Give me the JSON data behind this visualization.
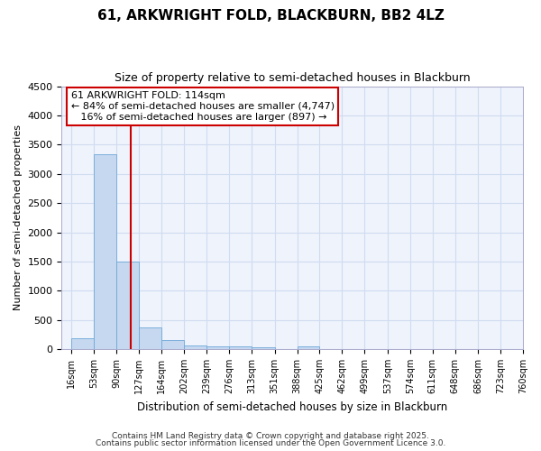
{
  "title1": "61, ARKWRIGHT FOLD, BLACKBURN, BB2 4LZ",
  "title2": "Size of property relative to semi-detached houses in Blackburn",
  "xlabel": "Distribution of semi-detached houses by size in Blackburn",
  "ylabel": "Number of semi-detached properties",
  "bar_edges": [
    16,
    53,
    90,
    127,
    164,
    202,
    239,
    276,
    313,
    351,
    388,
    425,
    462,
    499,
    537,
    574,
    611,
    648,
    686,
    723,
    760
  ],
  "bar_heights": [
    185,
    3340,
    1505,
    375,
    150,
    70,
    50,
    40,
    30,
    0,
    55,
    0,
    0,
    0,
    0,
    0,
    0,
    0,
    0,
    0
  ],
  "bar_color": "#C5D8F0",
  "bar_edge_color": "#6EA8D8",
  "grid_color": "#D0DCF0",
  "bg_color": "#FFFFFF",
  "ax_bg_color": "#EEF3FC",
  "vline_x": 114,
  "vline_color": "#CC0000",
  "ylim": [
    0,
    4500
  ],
  "xlim_left": 0,
  "xlim_right": 760,
  "annotation_title": "61 ARKWRIGHT FOLD: 114sqm",
  "annotation_line1": "← 84% of semi-detached houses are smaller (4,747)",
  "annotation_line2": "16% of semi-detached houses are larger (897) →",
  "annotation_box_color": "white",
  "annotation_box_edge": "#CC0000",
  "footer1": "Contains HM Land Registry data © Crown copyright and database right 2025.",
  "footer2": "Contains public sector information licensed under the Open Government Licence 3.0.",
  "tick_labels": [
    "16sqm",
    "53sqm",
    "90sqm",
    "127sqm",
    "164sqm",
    "202sqm",
    "239sqm",
    "276sqm",
    "313sqm",
    "351sqm",
    "388sqm",
    "425sqm",
    "462sqm",
    "499sqm",
    "537sqm",
    "574sqm",
    "611sqm",
    "648sqm",
    "686sqm",
    "723sqm",
    "760sqm"
  ],
  "yticks": [
    0,
    500,
    1000,
    1500,
    2000,
    2500,
    3000,
    3500,
    4000,
    4500
  ]
}
